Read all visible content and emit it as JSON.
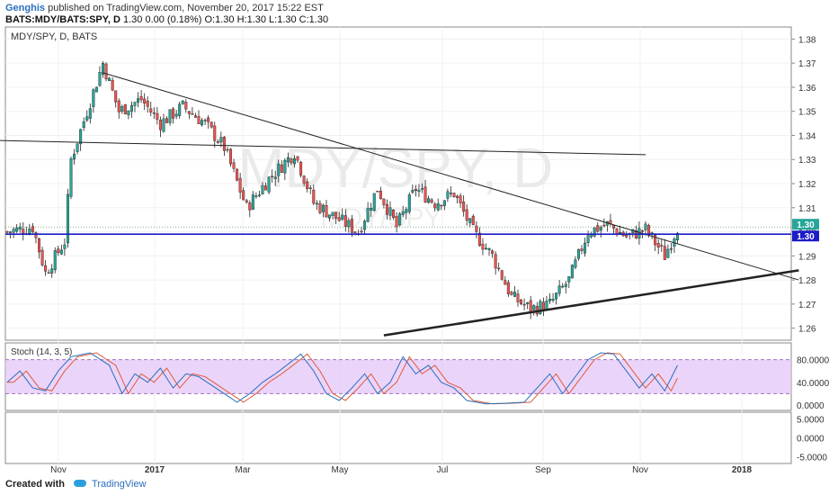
{
  "header": {
    "user": "Genghis",
    "published": "published on TradingView.com, November 20, 2017 15:22 EST",
    "symbol_line": "BATS:MDY/BATS:SPY, D",
    "quote": "1.30 0.00 (0.18%) O:1.30 H:1.30 L:1.30 C:1.30"
  },
  "footer": {
    "created": "Created with",
    "brand": "TradingView"
  },
  "colors": {
    "up": "#26a69a",
    "down": "#ef5350",
    "wick": "#222222",
    "hline": "#1c1cc8",
    "stoch_k": "#2a6ebb",
    "stoch_d": "#e05a3a",
    "stoch_band": "#e4c6f7"
  },
  "chart_data": {
    "type": "candlestick",
    "pane_title": "MDY/SPY, D, BATS",
    "watermark": "MDY/SPY, D",
    "watermark_sub": "MDY/SPY",
    "x_ticks": [
      "Nov",
      "2017",
      "Mar",
      "May",
      "Jul",
      "Sep",
      "Nov",
      "2018"
    ],
    "y_ticks": [
      1.38,
      1.37,
      1.36,
      1.35,
      1.34,
      1.33,
      1.32,
      1.31,
      1.3,
      1.29,
      1.28,
      1.27,
      1.26
    ],
    "ylim": [
      1.255,
      1.385
    ],
    "price_labels": [
      "1.30",
      "1.30"
    ],
    "close_path": [
      {
        "t": 0,
        "v": 1.3
      },
      {
        "t": 8,
        "v": 1.302
      },
      {
        "t": 12,
        "v": 1.283
      },
      {
        "t": 18,
        "v": 1.296
      },
      {
        "t": 20,
        "v": 1.33
      },
      {
        "t": 25,
        "v": 1.35
      },
      {
        "t": 30,
        "v": 1.37
      },
      {
        "t": 35,
        "v": 1.35
      },
      {
        "t": 42,
        "v": 1.355
      },
      {
        "t": 48,
        "v": 1.345
      },
      {
        "t": 55,
        "v": 1.352
      },
      {
        "t": 62,
        "v": 1.345
      },
      {
        "t": 68,
        "v": 1.335
      },
      {
        "t": 75,
        "v": 1.31
      },
      {
        "t": 82,
        "v": 1.322
      },
      {
        "t": 90,
        "v": 1.333
      },
      {
        "t": 96,
        "v": 1.312
      },
      {
        "t": 104,
        "v": 1.305
      },
      {
        "t": 110,
        "v": 1.3
      },
      {
        "t": 116,
        "v": 1.318
      },
      {
        "t": 122,
        "v": 1.302
      },
      {
        "t": 128,
        "v": 1.318
      },
      {
        "t": 134,
        "v": 1.312
      },
      {
        "t": 140,
        "v": 1.316
      },
      {
        "t": 146,
        "v": 1.3
      },
      {
        "t": 152,
        "v": 1.29
      },
      {
        "t": 158,
        "v": 1.273
      },
      {
        "t": 164,
        "v": 1.268
      },
      {
        "t": 170,
        "v": 1.27
      },
      {
        "t": 176,
        "v": 1.28
      },
      {
        "t": 182,
        "v": 1.3
      },
      {
        "t": 188,
        "v": 1.303
      },
      {
        "t": 194,
        "v": 1.298
      },
      {
        "t": 200,
        "v": 1.301
      },
      {
        "t": 206,
        "v": 1.29
      },
      {
        "t": 210,
        "v": 1.302
      }
    ],
    "trendlines": [
      {
        "t1": 30,
        "v1": 1.366,
        "t2": 248,
        "v2": 1.28,
        "width": 1
      },
      {
        "t1": -7,
        "v1": 1.338,
        "t2": 200,
        "v2": 1.332,
        "width": 1
      },
      {
        "t1": 118,
        "v1": 1.257,
        "t2": 248,
        "v2": 1.284,
        "width": 2.5
      }
    ],
    "hline": 1.299,
    "stoch": {
      "label": "Stoch (14, 3, 5)",
      "y_ticks": [
        "80.0000",
        "40.0000",
        "0.0000"
      ],
      "band": [
        20,
        80
      ],
      "k_path": [
        {
          "t": 0,
          "v": 40
        },
        {
          "t": 4,
          "v": 60
        },
        {
          "t": 8,
          "v": 30
        },
        {
          "t": 12,
          "v": 25
        },
        {
          "t": 16,
          "v": 60
        },
        {
          "t": 20,
          "v": 85
        },
        {
          "t": 26,
          "v": 92
        },
        {
          "t": 32,
          "v": 70
        },
        {
          "t": 36,
          "v": 20
        },
        {
          "t": 40,
          "v": 55
        },
        {
          "t": 44,
          "v": 40
        },
        {
          "t": 48,
          "v": 65
        },
        {
          "t": 52,
          "v": 30
        },
        {
          "t": 56,
          "v": 55
        },
        {
          "t": 60,
          "v": 50
        },
        {
          "t": 64,
          "v": 35
        },
        {
          "t": 68,
          "v": 20
        },
        {
          "t": 72,
          "v": 5
        },
        {
          "t": 76,
          "v": 20
        },
        {
          "t": 80,
          "v": 40
        },
        {
          "t": 84,
          "v": 55
        },
        {
          "t": 88,
          "v": 72
        },
        {
          "t": 92,
          "v": 90
        },
        {
          "t": 96,
          "v": 60
        },
        {
          "t": 100,
          "v": 20
        },
        {
          "t": 104,
          "v": 8
        },
        {
          "t": 108,
          "v": 30
        },
        {
          "t": 112,
          "v": 55
        },
        {
          "t": 116,
          "v": 20
        },
        {
          "t": 120,
          "v": 40
        },
        {
          "t": 124,
          "v": 85
        },
        {
          "t": 128,
          "v": 55
        },
        {
          "t": 132,
          "v": 70
        },
        {
          "t": 136,
          "v": 40
        },
        {
          "t": 140,
          "v": 30
        },
        {
          "t": 144,
          "v": 8
        },
        {
          "t": 150,
          "v": 2
        },
        {
          "t": 156,
          "v": 3
        },
        {
          "t": 162,
          "v": 5
        },
        {
          "t": 166,
          "v": 30
        },
        {
          "t": 170,
          "v": 55
        },
        {
          "t": 174,
          "v": 20
        },
        {
          "t": 178,
          "v": 50
        },
        {
          "t": 182,
          "v": 80
        },
        {
          "t": 186,
          "v": 92
        },
        {
          "t": 190,
          "v": 90
        },
        {
          "t": 194,
          "v": 60
        },
        {
          "t": 198,
          "v": 30
        },
        {
          "t": 202,
          "v": 55
        },
        {
          "t": 206,
          "v": 25
        },
        {
          "t": 210,
          "v": 70
        }
      ]
    },
    "osc2": {
      "y_ticks": [
        "5.0000",
        "0.0000",
        "-5.0000"
      ]
    }
  }
}
